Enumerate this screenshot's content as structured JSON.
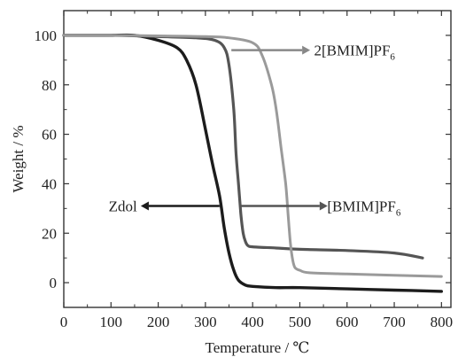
{
  "chart_data": {
    "type": "line",
    "title": "",
    "xlabel": "Temperature / ℃",
    "ylabel": "Weight / %",
    "xlim": [
      0,
      820
    ],
    "ylim": [
      -10,
      110
    ],
    "xticks": [
      "0",
      "100",
      "200",
      "300",
      "400",
      "500",
      "600",
      "700",
      "800"
    ],
    "yticks": [
      "0",
      "20",
      "40",
      "60",
      "80",
      "100"
    ],
    "grid": false,
    "legend": "none",
    "series": [
      {
        "name": "Zdol",
        "color": "#1c1c1c",
        "x": [
          0,
          50,
          100,
          150,
          200,
          240,
          260,
          280,
          300,
          315,
          330,
          340,
          350,
          360,
          370,
          385,
          400,
          450,
          500,
          600,
          700,
          800
        ],
        "y": [
          100,
          100,
          100,
          100,
          98,
          95,
          90,
          80,
          62,
          48,
          35,
          22,
          12,
          5,
          1,
          -1,
          -1.5,
          -2,
          -2,
          -2.5,
          -3,
          -3.5
        ]
      },
      {
        "name": "[BMIM]PF6",
        "color": "#555555",
        "x": [
          0,
          100,
          200,
          280,
          320,
          340,
          350,
          360,
          365,
          370,
          375,
          380,
          385,
          390,
          400,
          450,
          500,
          600,
          700,
          760
        ],
        "y": [
          100,
          100,
          99.5,
          99,
          98,
          95,
          88,
          70,
          52,
          40,
          28,
          20,
          16.5,
          15,
          14.5,
          14,
          13.5,
          13,
          12,
          10
        ]
      },
      {
        "name": "2[BMIM]PF6",
        "color": "#9a9a9a",
        "x": [
          0,
          100,
          200,
          300,
          350,
          400,
          420,
          440,
          450,
          460,
          470,
          475,
          480,
          485,
          490,
          500,
          520,
          600,
          700,
          800
        ],
        "y": [
          100,
          100,
          99.8,
          99.5,
          99,
          97,
          92,
          80,
          70,
          55,
          40,
          28,
          16,
          9,
          6,
          5,
          4,
          3.5,
          3,
          2.5
        ]
      }
    ],
    "annotations": [
      {
        "text": "2[BMIM]PF",
        "sub": "6"
      },
      {
        "text": "Zdol",
        "sub": ""
      },
      {
        "text": "[BMIM]PF",
        "sub": "6"
      }
    ]
  }
}
